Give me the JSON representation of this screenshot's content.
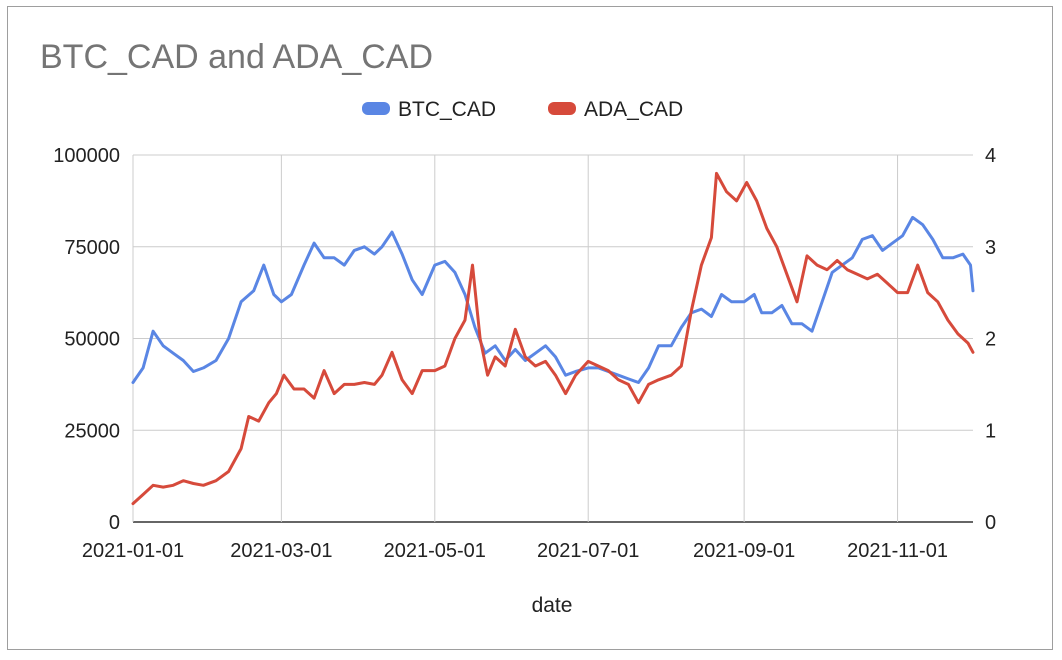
{
  "chart_data": {
    "type": "line",
    "title": "BTC_CAD and ADA_CAD",
    "xlabel": "date",
    "ylabel_left": "",
    "ylabel_right": "",
    "legend_position": "top",
    "grid": true,
    "x_range": [
      "2021-01-01",
      "2021-12-01"
    ],
    "x_tick_labels": [
      "2021-01-01",
      "2021-03-01",
      "2021-05-01",
      "2021-07-01",
      "2021-09-01",
      "2021-11-01"
    ],
    "y_left_ticks": [
      "0",
      "25000",
      "50000",
      "75000",
      "100000"
    ],
    "y_right_ticks": [
      "0",
      "1",
      "2",
      "3",
      "4"
    ],
    "ylim_left": [
      0,
      100000
    ],
    "ylim_right": [
      0,
      4
    ],
    "series": [
      {
        "name": "BTC_CAD",
        "axis": "left",
        "color": "#5a86e4",
        "points": [
          [
            "2021-01-01",
            38000
          ],
          [
            "2021-01-05",
            42000
          ],
          [
            "2021-01-09",
            52000
          ],
          [
            "2021-01-13",
            48000
          ],
          [
            "2021-01-17",
            46000
          ],
          [
            "2021-01-21",
            44000
          ],
          [
            "2021-01-25",
            41000
          ],
          [
            "2021-01-29",
            42000
          ],
          [
            "2021-02-03",
            44000
          ],
          [
            "2021-02-08",
            50000
          ],
          [
            "2021-02-13",
            60000
          ],
          [
            "2021-02-18",
            63000
          ],
          [
            "2021-02-22",
            70000
          ],
          [
            "2021-02-26",
            62000
          ],
          [
            "2021-03-01",
            60000
          ],
          [
            "2021-03-05",
            62000
          ],
          [
            "2021-03-10",
            70000
          ],
          [
            "2021-03-14",
            76000
          ],
          [
            "2021-03-18",
            72000
          ],
          [
            "2021-03-22",
            72000
          ],
          [
            "2021-03-26",
            70000
          ],
          [
            "2021-03-30",
            74000
          ],
          [
            "2021-04-03",
            75000
          ],
          [
            "2021-04-07",
            73000
          ],
          [
            "2021-04-10",
            75000
          ],
          [
            "2021-04-14",
            79000
          ],
          [
            "2021-04-18",
            73000
          ],
          [
            "2021-04-22",
            66000
          ],
          [
            "2021-04-26",
            62000
          ],
          [
            "2021-05-01",
            70000
          ],
          [
            "2021-05-05",
            71000
          ],
          [
            "2021-05-09",
            68000
          ],
          [
            "2021-05-13",
            62000
          ],
          [
            "2021-05-17",
            53000
          ],
          [
            "2021-05-21",
            46000
          ],
          [
            "2021-05-25",
            48000
          ],
          [
            "2021-05-29",
            44000
          ],
          [
            "2021-06-02",
            47000
          ],
          [
            "2021-06-06",
            44000
          ],
          [
            "2021-06-10",
            46000
          ],
          [
            "2021-06-14",
            48000
          ],
          [
            "2021-06-18",
            45000
          ],
          [
            "2021-06-22",
            40000
          ],
          [
            "2021-06-26",
            41000
          ],
          [
            "2021-07-01",
            42000
          ],
          [
            "2021-07-05",
            42000
          ],
          [
            "2021-07-09",
            41000
          ],
          [
            "2021-07-13",
            40000
          ],
          [
            "2021-07-17",
            39000
          ],
          [
            "2021-07-21",
            38000
          ],
          [
            "2021-07-25",
            42000
          ],
          [
            "2021-07-29",
            48000
          ],
          [
            "2021-08-03",
            48000
          ],
          [
            "2021-08-07",
            53000
          ],
          [
            "2021-08-11",
            57000
          ],
          [
            "2021-08-15",
            58000
          ],
          [
            "2021-08-19",
            56000
          ],
          [
            "2021-08-23",
            62000
          ],
          [
            "2021-08-27",
            60000
          ],
          [
            "2021-09-01",
            60000
          ],
          [
            "2021-09-05",
            62000
          ],
          [
            "2021-09-08",
            57000
          ],
          [
            "2021-09-12",
            57000
          ],
          [
            "2021-09-16",
            59000
          ],
          [
            "2021-09-20",
            54000
          ],
          [
            "2021-09-24",
            54000
          ],
          [
            "2021-09-28",
            52000
          ],
          [
            "2021-10-02",
            60000
          ],
          [
            "2021-10-06",
            68000
          ],
          [
            "2021-10-10",
            70000
          ],
          [
            "2021-10-14",
            72000
          ],
          [
            "2021-10-18",
            77000
          ],
          [
            "2021-10-22",
            78000
          ],
          [
            "2021-10-26",
            74000
          ],
          [
            "2021-10-30",
            76000
          ],
          [
            "2021-11-03",
            78000
          ],
          [
            "2021-11-07",
            83000
          ],
          [
            "2021-11-11",
            81000
          ],
          [
            "2021-11-15",
            77000
          ],
          [
            "2021-11-19",
            72000
          ],
          [
            "2021-11-23",
            72000
          ],
          [
            "2021-11-27",
            73000
          ],
          [
            "2021-11-30",
            70000
          ],
          [
            "2021-12-01",
            63000
          ]
        ]
      },
      {
        "name": "ADA_CAD",
        "axis": "right",
        "color": "#d64a3b",
        "points": [
          [
            "2021-01-01",
            0.2
          ],
          [
            "2021-01-05",
            0.3
          ],
          [
            "2021-01-09",
            0.4
          ],
          [
            "2021-01-13",
            0.38
          ],
          [
            "2021-01-17",
            0.4
          ],
          [
            "2021-01-21",
            0.45
          ],
          [
            "2021-01-25",
            0.42
          ],
          [
            "2021-01-29",
            0.4
          ],
          [
            "2021-02-03",
            0.45
          ],
          [
            "2021-02-08",
            0.55
          ],
          [
            "2021-02-13",
            0.8
          ],
          [
            "2021-02-16",
            1.15
          ],
          [
            "2021-02-20",
            1.1
          ],
          [
            "2021-02-24",
            1.3
          ],
          [
            "2021-02-27",
            1.4
          ],
          [
            "2021-03-02",
            1.6
          ],
          [
            "2021-03-06",
            1.45
          ],
          [
            "2021-03-10",
            1.45
          ],
          [
            "2021-03-14",
            1.35
          ],
          [
            "2021-03-18",
            1.65
          ],
          [
            "2021-03-22",
            1.4
          ],
          [
            "2021-03-26",
            1.5
          ],
          [
            "2021-03-30",
            1.5
          ],
          [
            "2021-04-03",
            1.52
          ],
          [
            "2021-04-07",
            1.5
          ],
          [
            "2021-04-10",
            1.6
          ],
          [
            "2021-04-14",
            1.85
          ],
          [
            "2021-04-18",
            1.55
          ],
          [
            "2021-04-22",
            1.4
          ],
          [
            "2021-04-26",
            1.65
          ],
          [
            "2021-05-01",
            1.65
          ],
          [
            "2021-05-05",
            1.7
          ],
          [
            "2021-05-09",
            2.0
          ],
          [
            "2021-05-13",
            2.2
          ],
          [
            "2021-05-16",
            2.8
          ],
          [
            "2021-05-19",
            2.0
          ],
          [
            "2021-05-22",
            1.6
          ],
          [
            "2021-05-25",
            1.8
          ],
          [
            "2021-05-29",
            1.7
          ],
          [
            "2021-06-02",
            2.1
          ],
          [
            "2021-06-06",
            1.8
          ],
          [
            "2021-06-10",
            1.7
          ],
          [
            "2021-06-14",
            1.75
          ],
          [
            "2021-06-18",
            1.6
          ],
          [
            "2021-06-22",
            1.4
          ],
          [
            "2021-06-26",
            1.6
          ],
          [
            "2021-07-01",
            1.75
          ],
          [
            "2021-07-05",
            1.7
          ],
          [
            "2021-07-09",
            1.65
          ],
          [
            "2021-07-13",
            1.55
          ],
          [
            "2021-07-17",
            1.5
          ],
          [
            "2021-07-21",
            1.3
          ],
          [
            "2021-07-25",
            1.5
          ],
          [
            "2021-07-29",
            1.55
          ],
          [
            "2021-08-03",
            1.6
          ],
          [
            "2021-08-07",
            1.7
          ],
          [
            "2021-08-11",
            2.3
          ],
          [
            "2021-08-15",
            2.8
          ],
          [
            "2021-08-19",
            3.1
          ],
          [
            "2021-08-21",
            3.8
          ],
          [
            "2021-08-25",
            3.6
          ],
          [
            "2021-08-29",
            3.5
          ],
          [
            "2021-09-02",
            3.7
          ],
          [
            "2021-09-06",
            3.5
          ],
          [
            "2021-09-10",
            3.2
          ],
          [
            "2021-09-14",
            3.0
          ],
          [
            "2021-09-18",
            2.7
          ],
          [
            "2021-09-22",
            2.4
          ],
          [
            "2021-09-26",
            2.9
          ],
          [
            "2021-09-30",
            2.8
          ],
          [
            "2021-10-04",
            2.75
          ],
          [
            "2021-10-08",
            2.85
          ],
          [
            "2021-10-12",
            2.75
          ],
          [
            "2021-10-16",
            2.7
          ],
          [
            "2021-10-20",
            2.65
          ],
          [
            "2021-10-24",
            2.7
          ],
          [
            "2021-10-28",
            2.6
          ],
          [
            "2021-11-01",
            2.5
          ],
          [
            "2021-11-05",
            2.5
          ],
          [
            "2021-11-09",
            2.8
          ],
          [
            "2021-11-13",
            2.5
          ],
          [
            "2021-11-17",
            2.4
          ],
          [
            "2021-11-21",
            2.2
          ],
          [
            "2021-11-25",
            2.05
          ],
          [
            "2021-11-29",
            1.95
          ],
          [
            "2021-12-01",
            1.85
          ]
        ]
      }
    ]
  }
}
